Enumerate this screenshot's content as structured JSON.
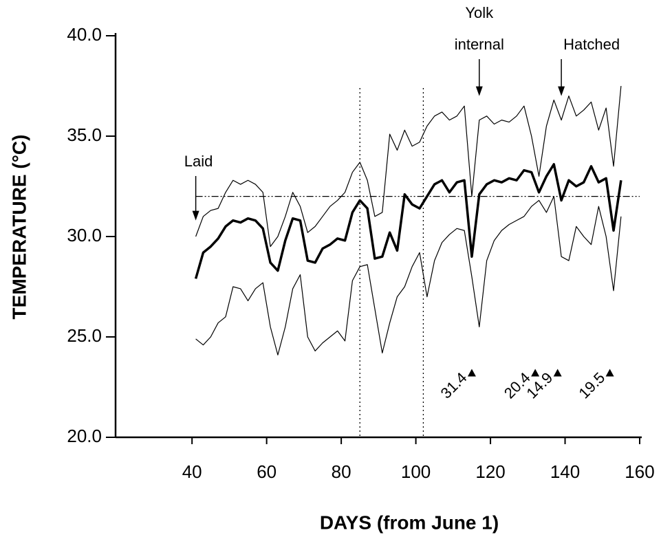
{
  "chart_data": {
    "type": "line",
    "xlabel": "DAYS (from June 1)",
    "ylabel": "TEMPERATURE (°C)",
    "x": [
      41,
      43,
      45,
      47,
      49,
      51,
      53,
      55,
      57,
      59,
      61,
      63,
      65,
      67,
      69,
      71,
      73,
      75,
      77,
      79,
      81,
      83,
      85,
      87,
      89,
      91,
      93,
      95,
      97,
      99,
      101,
      103,
      105,
      107,
      109,
      111,
      113,
      115,
      117,
      119,
      121,
      123,
      125,
      127,
      129,
      131,
      133,
      135,
      137,
      139,
      141,
      143,
      145,
      147,
      149,
      151,
      153,
      155
    ],
    "series": [
      {
        "color": "#000000",
        "values": [
          30.0,
          31.0,
          31.3,
          31.4,
          32.2,
          32.8,
          32.6,
          32.8,
          32.6,
          32.2,
          29.5,
          30.0,
          31.0,
          32.2,
          31.5,
          30.2,
          30.5,
          31.0,
          31.5,
          31.8,
          32.2,
          33.2,
          33.7,
          32.8,
          31.0,
          31.2,
          35.1,
          34.3,
          35.3,
          34.5,
          34.7,
          35.5,
          36.0,
          36.2,
          35.8,
          36.0,
          36.5,
          32.0,
          35.8,
          36.0,
          35.6,
          35.8,
          35.7,
          36.0,
          36.5,
          35.0,
          33.0,
          35.5,
          36.8,
          35.8,
          37.0,
          36.0,
          36.3,
          36.7,
          35.3,
          36.4,
          33.5,
          37.5
        ]
      },
      {
        "color": "#000000",
        "values": [
          27.9,
          29.2,
          29.5,
          29.9,
          30.5,
          30.8,
          30.7,
          30.9,
          30.8,
          30.4,
          28.7,
          28.3,
          29.8,
          30.9,
          30.8,
          28.8,
          28.7,
          29.4,
          29.6,
          29.9,
          29.8,
          31.2,
          31.8,
          31.4,
          28.9,
          29.0,
          30.2,
          29.3,
          32.1,
          31.6,
          31.4,
          32.0,
          32.6,
          32.8,
          32.2,
          32.7,
          32.8,
          29.0,
          32.1,
          32.6,
          32.8,
          32.7,
          32.9,
          32.8,
          33.3,
          33.2,
          32.2,
          33.0,
          33.6,
          31.8,
          32.8,
          32.5,
          32.7,
          33.5,
          32.7,
          32.9,
          30.3,
          32.8
        ]
      },
      {
        "color": "#000000",
        "values": [
          24.9,
          24.6,
          25.0,
          25.7,
          26.0,
          27.5,
          27.4,
          26.8,
          27.4,
          27.7,
          25.5,
          24.1,
          25.5,
          27.4,
          28.1,
          25.0,
          24.3,
          24.7,
          25.0,
          25.3,
          24.8,
          27.8,
          28.5,
          28.6,
          26.4,
          24.2,
          25.7,
          27.0,
          27.5,
          28.5,
          29.2,
          27.0,
          28.8,
          29.7,
          30.1,
          30.4,
          30.3,
          28.0,
          25.5,
          28.8,
          29.8,
          30.3,
          30.6,
          30.8,
          31.0,
          31.5,
          31.8,
          31.2,
          32.0,
          29.0,
          28.8,
          30.5,
          30.0,
          29.6,
          31.5,
          30.0,
          27.3,
          31.0
        ]
      }
    ],
    "xlim": [
      19.5,
      160
    ],
    "xticks": [
      40,
      60,
      80,
      100,
      120,
      140,
      160
    ],
    "ylim": [
      20,
      40
    ],
    "yticks": [
      {
        "value": 20,
        "label": "20.0"
      },
      {
        "value": 25,
        "label": "25.0"
      },
      {
        "value": 30,
        "label": "30.0"
      },
      {
        "value": 35,
        "label": "35.0"
      },
      {
        "value": 40,
        "label": "40.0"
      }
    ],
    "reference_line": 32,
    "vlines": [
      85,
      102
    ],
    "annotations": [
      {
        "lines": [
          "Laid"
        ],
        "x": 41,
        "y": 30.8
      },
      {
        "lines": [
          "Yolk",
          "internal"
        ],
        "x": 117,
        "y": 37.0
      },
      {
        "lines": [
          "Hatched"
        ],
        "x": 139,
        "y": 37.0
      }
    ],
    "markers": [
      {
        "x": 115,
        "y": 23.2,
        "value": 31.4
      },
      {
        "x": 132,
        "y": 23.2,
        "value": 20.4
      },
      {
        "x": 138,
        "y": 23.2,
        "value": 14.9
      },
      {
        "x": 152,
        "y": 23.2,
        "value": 19.5
      }
    ]
  }
}
